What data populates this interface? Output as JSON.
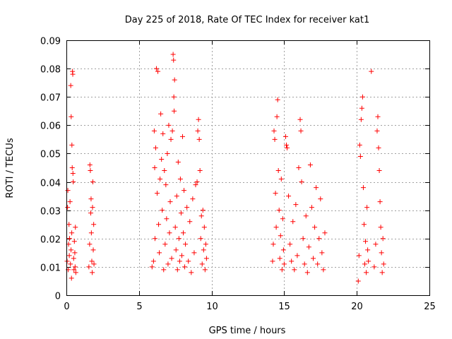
{
  "chart_data": {
    "type": "scatter",
    "title": "Day 225 of 2018, Rate Of TEC Index for receiver kat1",
    "xlabel": "GPS time / hours",
    "ylabel": "ROTI / TECUs",
    "xlim": [
      0,
      25
    ],
    "ylim": [
      0,
      0.09
    ],
    "xticks": [
      "0",
      "5",
      "10",
      "15",
      "20",
      "25"
    ],
    "yticks": [
      "0",
      "0.01",
      "0.02",
      "0.03",
      "0.04",
      "0.05",
      "0.06",
      "0.07",
      "0.08",
      "0.09"
    ],
    "grid": true,
    "marker": "+",
    "color": "#ff0000",
    "series": [
      {
        "values": [
          [
            0.05,
            0.012
          ],
          [
            0.08,
            0.031
          ],
          [
            0.1,
            0.037
          ],
          [
            0.12,
            0.009
          ],
          [
            0.15,
            0.018
          ],
          [
            0.18,
            0.025
          ],
          [
            0.2,
            0.014
          ],
          [
            0.22,
            0.02
          ],
          [
            0.25,
            0.033
          ],
          [
            0.28,
            0.011
          ],
          [
            0.3,
            0.074
          ],
          [
            0.32,
            0.016
          ],
          [
            0.33,
            0.063
          ],
          [
            0.35,
            0.006
          ],
          [
            0.37,
            0.022
          ],
          [
            0.38,
            0.053
          ],
          [
            0.4,
            0.045
          ],
          [
            0.42,
            0.079
          ],
          [
            0.44,
            0.078
          ],
          [
            0.45,
            0.043
          ],
          [
            0.47,
            0.04
          ],
          [
            0.5,
            0.013
          ],
          [
            0.52,
            0.009
          ],
          [
            0.55,
            0.019
          ],
          [
            0.58,
            0.015
          ],
          [
            0.6,
            0.01
          ],
          [
            0.62,
            0.024
          ],
          [
            0.65,
            0.008
          ],
          [
            1.55,
            0.01
          ],
          [
            1.6,
            0.018
          ],
          [
            1.62,
            0.046
          ],
          [
            1.65,
            0.044
          ],
          [
            1.68,
            0.029
          ],
          [
            1.7,
            0.034
          ],
          [
            1.72,
            0.022
          ],
          [
            1.75,
            0.012
          ],
          [
            1.78,
            0.008
          ],
          [
            1.8,
            0.031
          ],
          [
            1.82,
            0.04
          ],
          [
            1.85,
            0.016
          ],
          [
            1.88,
            0.025
          ],
          [
            1.9,
            0.011
          ],
          [
            5.9,
            0.01
          ],
          [
            6.0,
            0.012
          ],
          [
            6.05,
            0.058
          ],
          [
            6.08,
            0.045
          ],
          [
            6.1,
            0.02
          ],
          [
            6.15,
            0.052
          ],
          [
            6.2,
            0.08
          ],
          [
            6.25,
            0.036
          ],
          [
            6.3,
            0.079
          ],
          [
            6.35,
            0.025
          ],
          [
            6.4,
            0.015
          ],
          [
            6.45,
            0.041
          ],
          [
            6.5,
            0.064
          ],
          [
            6.55,
            0.048
          ],
          [
            6.6,
            0.03
          ],
          [
            6.65,
            0.057
          ],
          [
            6.7,
            0.009
          ],
          [
            6.75,
            0.044
          ],
          [
            6.8,
            0.018
          ],
          [
            6.85,
            0.039
          ],
          [
            6.9,
            0.027
          ],
          [
            6.95,
            0.05
          ],
          [
            7.0,
            0.011
          ],
          [
            7.05,
            0.06
          ],
          [
            7.1,
            0.022
          ],
          [
            7.15,
            0.033
          ],
          [
            7.2,
            0.055
          ],
          [
            7.25,
            0.013
          ],
          [
            7.3,
            0.058
          ],
          [
            7.35,
            0.085
          ],
          [
            7.38,
            0.083
          ],
          [
            7.4,
            0.07
          ],
          [
            7.42,
            0.065
          ],
          [
            7.45,
            0.076
          ],
          [
            7.5,
            0.024
          ],
          [
            7.55,
            0.016
          ],
          [
            7.6,
            0.035
          ],
          [
            7.65,
            0.009
          ],
          [
            7.7,
            0.047
          ],
          [
            7.75,
            0.02
          ],
          [
            7.8,
            0.012
          ],
          [
            7.85,
            0.041
          ],
          [
            7.9,
            0.029
          ],
          [
            7.95,
            0.014
          ],
          [
            8.0,
            0.056
          ],
          [
            8.05,
            0.022
          ],
          [
            8.1,
            0.037
          ],
          [
            8.15,
            0.01
          ],
          [
            8.2,
            0.018
          ],
          [
            8.3,
            0.031
          ],
          [
            8.4,
            0.012
          ],
          [
            8.5,
            0.026
          ],
          [
            8.6,
            0.008
          ],
          [
            8.7,
            0.034
          ],
          [
            8.8,
            0.015
          ],
          [
            8.9,
            0.039
          ],
          [
            9.0,
            0.04
          ],
          [
            9.05,
            0.058
          ],
          [
            9.1,
            0.062
          ],
          [
            9.15,
            0.055
          ],
          [
            9.2,
            0.044
          ],
          [
            9.25,
            0.02
          ],
          [
            9.3,
            0.028
          ],
          [
            9.35,
            0.011
          ],
          [
            9.4,
            0.03
          ],
          [
            9.45,
            0.016
          ],
          [
            9.5,
            0.024
          ],
          [
            9.55,
            0.009
          ],
          [
            9.6,
            0.018
          ],
          [
            9.65,
            0.013
          ],
          [
            14.2,
            0.012
          ],
          [
            14.25,
            0.018
          ],
          [
            14.3,
            0.058
          ],
          [
            14.35,
            0.055
          ],
          [
            14.4,
            0.036
          ],
          [
            14.45,
            0.024
          ],
          [
            14.5,
            0.063
          ],
          [
            14.55,
            0.069
          ],
          [
            14.6,
            0.044
          ],
          [
            14.65,
            0.03
          ],
          [
            14.7,
            0.013
          ],
          [
            14.75,
            0.021
          ],
          [
            14.8,
            0.041
          ],
          [
            14.85,
            0.009
          ],
          [
            14.9,
            0.027
          ],
          [
            14.95,
            0.016
          ],
          [
            15.0,
            0.011
          ],
          [
            15.1,
            0.056
          ],
          [
            15.15,
            0.053
          ],
          [
            15.2,
            0.052
          ],
          [
            15.3,
            0.035
          ],
          [
            15.4,
            0.018
          ],
          [
            15.5,
            0.012
          ],
          [
            15.6,
            0.026
          ],
          [
            15.7,
            0.009
          ],
          [
            15.8,
            0.032
          ],
          [
            15.9,
            0.014
          ],
          [
            16.0,
            0.045
          ],
          [
            16.1,
            0.062
          ],
          [
            16.15,
            0.058
          ],
          [
            16.2,
            0.04
          ],
          [
            16.3,
            0.02
          ],
          [
            16.4,
            0.011
          ],
          [
            16.5,
            0.028
          ],
          [
            16.6,
            0.008
          ],
          [
            16.7,
            0.017
          ],
          [
            16.8,
            0.046
          ],
          [
            16.9,
            0.031
          ],
          [
            17.0,
            0.013
          ],
          [
            17.1,
            0.024
          ],
          [
            17.2,
            0.038
          ],
          [
            17.3,
            0.011
          ],
          [
            17.4,
            0.02
          ],
          [
            17.5,
            0.034
          ],
          [
            17.6,
            0.015
          ],
          [
            17.7,
            0.009
          ],
          [
            17.8,
            0.022
          ],
          [
            20.1,
            0.005
          ],
          [
            20.15,
            0.014
          ],
          [
            20.2,
            0.053
          ],
          [
            20.25,
            0.049
          ],
          [
            20.3,
            0.062
          ],
          [
            20.35,
            0.066
          ],
          [
            20.4,
            0.07
          ],
          [
            20.45,
            0.038
          ],
          [
            20.5,
            0.025
          ],
          [
            20.55,
            0.011
          ],
          [
            20.6,
            0.019
          ],
          [
            20.65,
            0.008
          ],
          [
            20.7,
            0.031
          ],
          [
            20.75,
            0.016
          ],
          [
            20.8,
            0.012
          ],
          [
            21.0,
            0.079
          ],
          [
            21.2,
            0.01
          ],
          [
            21.3,
            0.018
          ],
          [
            21.4,
            0.058
          ],
          [
            21.45,
            0.063
          ],
          [
            21.5,
            0.052
          ],
          [
            21.55,
            0.044
          ],
          [
            21.6,
            0.033
          ],
          [
            21.65,
            0.024
          ],
          [
            21.7,
            0.015
          ],
          [
            21.75,
            0.008
          ],
          [
            21.8,
            0.02
          ],
          [
            21.85,
            0.011
          ]
        ]
      }
    ]
  }
}
